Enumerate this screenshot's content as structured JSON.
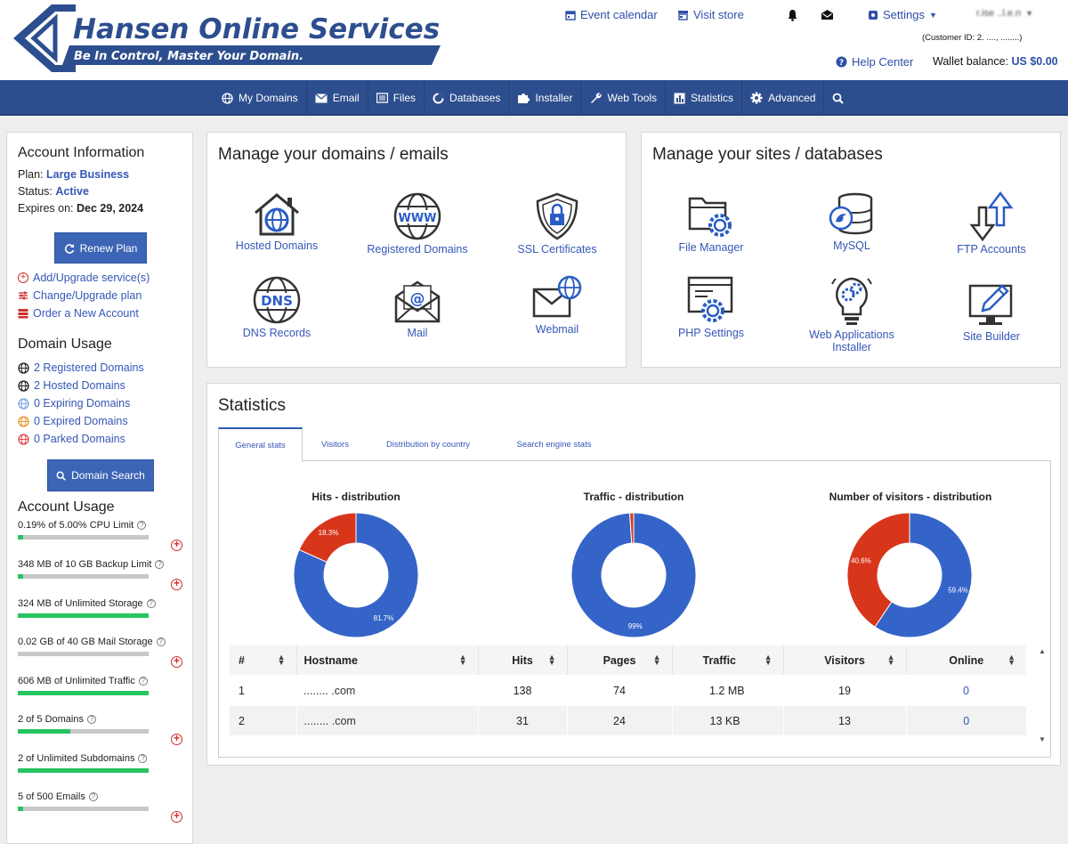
{
  "brand": {
    "title": "Hansen Online Services",
    "tagline": "Be In Control, Master Your Domain."
  },
  "topbar": {
    "event_calendar": "Event calendar",
    "visit_store": "Visit store",
    "settings": "Settings",
    "user_name": "r.ise ..l.e.n",
    "customer_id": "(Customer ID: 2. ...., ........)",
    "help_center": "Help Center",
    "wallet_label": "Wallet balance:",
    "wallet_value": "US $0.00"
  },
  "nav": [
    {
      "label": "My Domains",
      "icon": "globe-icon"
    },
    {
      "label": "Email",
      "icon": "envelope-icon"
    },
    {
      "label": "Files",
      "icon": "files-icon"
    },
    {
      "label": "Databases",
      "icon": "database-icon"
    },
    {
      "label": "Installer",
      "icon": "puzzle-icon"
    },
    {
      "label": "Web Tools",
      "icon": "wrench-icon"
    },
    {
      "label": "Statistics",
      "icon": "chart-icon"
    },
    {
      "label": "Advanced",
      "icon": "gear-icon"
    },
    {
      "label": "",
      "icon": "search-icon"
    }
  ],
  "sidebar": {
    "account_title": "Account Information",
    "plan_label": "Plan:",
    "plan_value": "Large Business",
    "status_label": "Status:",
    "status_value": "Active",
    "expires_label": "Expires on:",
    "expires_value": "Dec 29, 2024",
    "renew_button": "Renew Plan",
    "links": [
      "Add/Upgrade service(s)",
      "Change/Upgrade plan",
      "Order a New Account"
    ],
    "domain_title": "Domain Usage",
    "domain_links": [
      "2 Registered Domains",
      "2 Hosted Domains",
      "0 Expiring Domains",
      "0 Expired Domains",
      "0 Parked Domains"
    ],
    "domain_search_button": "Domain Search",
    "usage_title": "Account Usage",
    "usage": [
      {
        "label": "0.19% of 5.00% CPU Limit",
        "fill": 0.04,
        "addable": true
      },
      {
        "label": "348 MB of 10 GB Backup Limit",
        "fill": 0.03,
        "addable": true
      },
      {
        "label": "324 MB of Unlimited Storage",
        "fill": 1.0,
        "addable": false
      },
      {
        "label": "0.02 GB of 40 GB Mail Storage",
        "fill": 0.0,
        "addable": true
      },
      {
        "label": "606 MB of Unlimited Traffic",
        "fill": 1.0,
        "addable": false
      },
      {
        "label": "2 of 5 Domains",
        "fill": 0.4,
        "addable": true
      },
      {
        "label": "2 of Unlimited Subdomains",
        "fill": 1.0,
        "addable": false
      },
      {
        "label": "5 of 500 Emails",
        "fill": 0.01,
        "addable": true
      }
    ]
  },
  "domains_card": {
    "title": "Manage your domains / emails",
    "tiles": [
      "Hosted Domains",
      "Registered Domains",
      "SSL Certificates",
      "DNS Records",
      "Mail",
      "Webmail"
    ]
  },
  "sites_card": {
    "title": "Manage your sites / databases",
    "tiles": [
      "File Manager",
      "MySQL",
      "FTP Accounts",
      "PHP Settings",
      "Web Applications Installer",
      "Site Builder"
    ]
  },
  "statistics": {
    "title": "Statistics",
    "tabs": [
      "General stats",
      "Visitors",
      "Distribution by country",
      "Search engine stats"
    ],
    "table": {
      "headers": [
        "#",
        "Hostname",
        "Hits",
        "Pages",
        "Traffic",
        "Visitors",
        "Online"
      ],
      "rows": [
        [
          "1",
          "........ .com",
          "138",
          "74",
          "1.2 MB",
          "19",
          "0"
        ],
        [
          "2",
          "........ .com",
          "31",
          "24",
          "13 KB",
          "13",
          "0"
        ]
      ]
    }
  },
  "chart_data": [
    {
      "type": "pie",
      "title": "Hits - distribution",
      "slices": [
        {
          "value": 81.7,
          "label": "81.7%",
          "color": "#3564c9"
        },
        {
          "value": 18.3,
          "label": "18.3%",
          "color": "#d8361b"
        }
      ]
    },
    {
      "type": "pie",
      "title": "Traffic - distribution",
      "slices": [
        {
          "value": 99,
          "label": "99%",
          "color": "#3564c9"
        },
        {
          "value": 1,
          "label": "",
          "color": "#d8361b"
        }
      ]
    },
    {
      "type": "pie",
      "title": "Number of visitors - distribution",
      "slices": [
        {
          "value": 59.4,
          "label": "59.4%",
          "color": "#3564c9"
        },
        {
          "value": 40.6,
          "label": "40.6%",
          "color": "#d8361b"
        }
      ]
    }
  ],
  "colors": {
    "navbar": "#2d4e8e",
    "accent": "#3557b7",
    "button": "#3d65b5",
    "bar_fill": "#26c45f",
    "danger": "#d12d2d"
  }
}
